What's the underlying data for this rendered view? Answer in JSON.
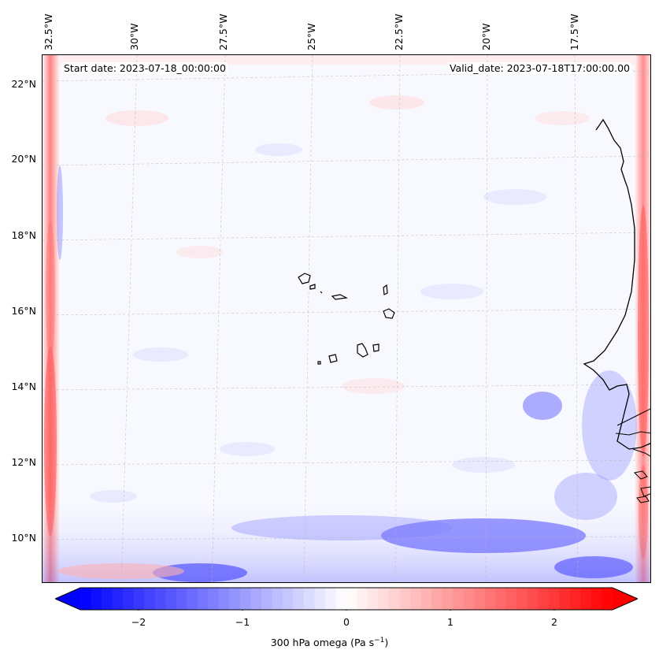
{
  "header": {
    "start_date": "Start date: 2023-07-18_00:00:00",
    "valid_date": "Valid_date: 2023-07-18T17:00:00.00"
  },
  "axes": {
    "lon_labels": [
      "32.5°W",
      "30°W",
      "27.5°W",
      "25°W",
      "22.5°W",
      "20°W",
      "17.5°W"
    ],
    "lat_labels": [
      "22°N",
      "20°N",
      "18°N",
      "16°N",
      "14°N",
      "12°N",
      "10°N"
    ]
  },
  "colorbar": {
    "ticks": [
      "−2",
      "−1",
      "0",
      "1",
      "2"
    ],
    "label_prefix": "300 hPa omega (Pa s",
    "label_exp": "−1",
    "label_suffix": ")",
    "range": [
      -2.75,
      2.75
    ],
    "colors": {
      "min": "#0000ff",
      "mid": "#ffffff",
      "max": "#ff0000"
    }
  }
}
